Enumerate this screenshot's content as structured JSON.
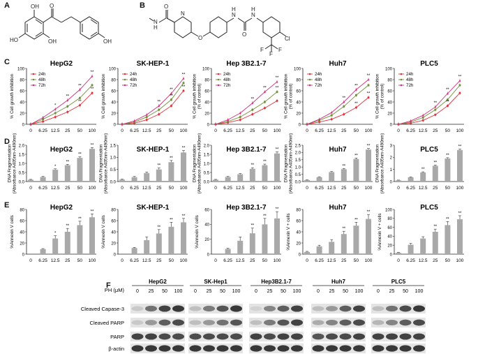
{
  "panels": {
    "A": "A",
    "B": "B",
    "C": "C",
    "D": "D",
    "E": "E",
    "F": "F"
  },
  "chem_atoms": {
    "oh": "OH",
    "ho": "HO",
    "o": "O",
    "h": "H",
    "n": "N",
    "cl": "Cl",
    "f": "F"
  },
  "colors": {
    "h24": "#e0303a",
    "h48": "#6e8f3a",
    "h72": "#d0307a",
    "bar": "#a9a9a9"
  },
  "dose_ticks": [
    "0",
    "6.25",
    "12.5",
    "25",
    "50",
    "100"
  ],
  "chart_data": [
    {
      "row": "C",
      "title": "HepG2",
      "type": "line",
      "ylabel": [
        "% Cell growth inhibition"
      ],
      "ylim": [
        0,
        100
      ],
      "yticks": [
        "0",
        "20",
        "40",
        "60",
        "80",
        "100"
      ],
      "legend": [
        "24h",
        "48h",
        "72h"
      ],
      "series": [
        {
          "name": "24h",
          "values": [
            0,
            5,
            13,
            22,
            34,
            56
          ]
        },
        {
          "name": "48h",
          "values": [
            0,
            9,
            20,
            32,
            47,
            70
          ]
        },
        {
          "name": "72h",
          "values": [
            0,
            12,
            27,
            43,
            62,
            86
          ]
        }
      ],
      "stars": [
        {
          "x": 2,
          "v": 27,
          "t": "*"
        },
        {
          "x": 3,
          "v": 43,
          "t": "**"
        },
        {
          "x": 4,
          "v": 62,
          "t": "**"
        },
        {
          "x": 5,
          "v": 86,
          "t": "**"
        },
        {
          "x": 4,
          "v": 34,
          "t": "**"
        },
        {
          "x": 5,
          "v": 56,
          "t": "**"
        }
      ]
    },
    {
      "row": "C",
      "title": "SK-HEP-1",
      "type": "line",
      "ylabel": [
        "% Cell growth inhibition"
      ],
      "ylim": [
        0,
        100
      ],
      "yticks": [
        "0",
        "20",
        "40",
        "60",
        "80",
        "100"
      ],
      "legend": [
        "24h",
        "48h",
        "72h"
      ],
      "series": [
        {
          "name": "24h",
          "values": [
            0,
            2,
            8,
            18,
            33,
            60
          ]
        },
        {
          "name": "48h",
          "values": [
            0,
            4,
            13,
            26,
            44,
            74
          ]
        },
        {
          "name": "72h",
          "values": [
            0,
            6,
            17,
            33,
            55,
            82
          ]
        }
      ],
      "stars": [
        {
          "x": 3,
          "v": 33,
          "t": "**"
        },
        {
          "x": 4,
          "v": 55,
          "t": "**"
        },
        {
          "x": 5,
          "v": 82,
          "t": "**"
        },
        {
          "x": 4,
          "v": 44,
          "t": "**"
        },
        {
          "x": 5,
          "v": 60,
          "t": "**"
        }
      ]
    },
    {
      "row": "C",
      "title": "Hep 3B2.1-7",
      "type": "line",
      "ylabel": [
        "% Cell growth inhibition",
        "(% of control)"
      ],
      "ylim": [
        0,
        100
      ],
      "yticks": [
        "0",
        "20",
        "40",
        "60",
        "80",
        "100"
      ],
      "legend": [
        "24h",
        "48h",
        "72h"
      ],
      "series": [
        {
          "name": "24h",
          "values": [
            0,
            3,
            8,
            18,
            29,
            42
          ]
        },
        {
          "name": "48h",
          "values": [
            0,
            5,
            13,
            26,
            40,
            58
          ]
        },
        {
          "name": "72h",
          "values": [
            0,
            8,
            20,
            38,
            58,
            76
          ]
        }
      ],
      "stars": [
        {
          "x": 3,
          "v": 38,
          "t": "**"
        },
        {
          "x": 4,
          "v": 58,
          "t": "**"
        },
        {
          "x": 5,
          "v": 76,
          "t": "**"
        },
        {
          "x": 5,
          "v": 58,
          "t": "**"
        }
      ]
    },
    {
      "row": "C",
      "title": "Huh7",
      "type": "line",
      "ylabel": [
        "% Cell growth inhibition",
        "(% of control)"
      ],
      "ylim": [
        0,
        100
      ],
      "yticks": [
        "0",
        "20",
        "40",
        "60",
        "80",
        "100"
      ],
      "legend": [
        "24h",
        "48h",
        "72h"
      ],
      "series": [
        {
          "name": "24h",
          "values": [
            0,
            4,
            9,
            18,
            30,
            48
          ]
        },
        {
          "name": "48h",
          "values": [
            0,
            7,
            16,
            32,
            52,
            70
          ]
        },
        {
          "name": "72h",
          "values": [
            0,
            9,
            21,
            40,
            62,
            80
          ]
        }
      ],
      "stars": [
        {
          "x": 3,
          "v": 40,
          "t": "**"
        },
        {
          "x": 4,
          "v": 62,
          "t": "**"
        },
        {
          "x": 5,
          "v": 80,
          "t": "**"
        },
        {
          "x": 4,
          "v": 30,
          "t": "**"
        },
        {
          "x": 5,
          "v": 48,
          "t": "**"
        }
      ]
    },
    {
      "row": "C",
      "title": "PLC5",
      "type": "line",
      "ylabel": [
        "% Cell growth inhibition",
        "(% of control)"
      ],
      "ylim": [
        0,
        100
      ],
      "yticks": [
        "0",
        "20",
        "40",
        "60",
        "80",
        "100"
      ],
      "legend": [
        "24h",
        "48h",
        "72h"
      ],
      "series": [
        {
          "name": "24h",
          "values": [
            0,
            2,
            7,
            17,
            33,
            56
          ]
        },
        {
          "name": "48h",
          "values": [
            0,
            4,
            12,
            26,
            44,
            70
          ]
        },
        {
          "name": "72h",
          "values": [
            0,
            6,
            16,
            31,
            55,
            78
          ]
        }
      ],
      "stars": [
        {
          "x": 3,
          "v": 31,
          "t": "**"
        },
        {
          "x": 4,
          "v": 55,
          "t": "**"
        },
        {
          "x": 5,
          "v": 78,
          "t": "**"
        },
        {
          "x": 4,
          "v": 33,
          "t": "**"
        }
      ]
    },
    {
      "row": "D",
      "title": "HepG2",
      "type": "bar",
      "ylabel": [
        "DNA Fragmentation",
        "(Absorbance A405nm-A490nm)"
      ],
      "ylim": [
        0,
        2.0
      ],
      "yticks": [
        "0.0",
        "0.5",
        "1.0",
        "1.5",
        "2.0"
      ],
      "values": [
        0.1,
        0.25,
        0.65,
        0.9,
        1.3,
        1.8
      ],
      "errors": [
        0.02,
        0.03,
        0.05,
        0.05,
        0.06,
        0.07
      ],
      "stars": [
        "",
        "",
        "*",
        "**",
        "**",
        "**"
      ]
    },
    {
      "row": "D",
      "title": "SK-HEP-1",
      "type": "bar",
      "ylabel": [
        "DNA Fragmentation",
        "(Absorbance A405nm-A490nm)"
      ],
      "ylim": [
        0,
        1.5
      ],
      "yticks": [
        "0.0",
        "0.5",
        "1.0",
        "1.5"
      ],
      "values": [
        0.08,
        0.18,
        0.35,
        0.5,
        0.8,
        1.2
      ],
      "errors": [
        0.02,
        0.03,
        0.04,
        0.06,
        0.07,
        0.08
      ],
      "stars": [
        "",
        "",
        "",
        "**",
        "**",
        "**"
      ]
    },
    {
      "row": "D",
      "title": "Hep 3B2.1-7",
      "type": "bar",
      "ylabel": [
        "DNA Fragmentation",
        "(Absorbance A405nm-A490nm)"
      ],
      "ylim": [
        0,
        2.0
      ],
      "yticks": [
        "0.0",
        "0.5",
        "1.0",
        "1.5",
        "2.0"
      ],
      "values": [
        0.1,
        0.25,
        0.4,
        0.7,
        0.9,
        1.55
      ],
      "errors": [
        0.02,
        0.03,
        0.04,
        0.06,
        0.06,
        0.08
      ],
      "stars": [
        "",
        "",
        "",
        "**",
        "**",
        "**"
      ]
    },
    {
      "row": "D",
      "title": "Huh7",
      "type": "bar",
      "ylabel": [
        "DNA Fragmentation",
        "(Absorbance A405nm-A490nm)"
      ],
      "ylim": [
        0,
        2.5
      ],
      "yticks": [
        "0.0",
        "0.5",
        "1.0",
        "1.5",
        "2.0",
        "2.5"
      ],
      "values": [
        0.1,
        0.3,
        0.65,
        0.85,
        1.55,
        2.2
      ],
      "errors": [
        0.02,
        0.03,
        0.04,
        0.05,
        0.07,
        0.08
      ],
      "stars": [
        "",
        "",
        "",
        "**",
        "**",
        "**"
      ]
    },
    {
      "row": "D",
      "title": "PLC5",
      "type": "bar",
      "ylabel": [
        "DNA Fragmentation",
        "(Absorbance A405nm-A490nm)"
      ],
      "ylim": [
        0,
        3.0
      ],
      "yticks": [
        "0",
        "1",
        "2",
        "3"
      ],
      "values": [
        0.1,
        0.35,
        0.75,
        1.3,
        1.9,
        2.6
      ],
      "errors": [
        0.02,
        0.03,
        0.05,
        0.06,
        0.07,
        0.08
      ],
      "stars": [
        "",
        "",
        "**",
        "**",
        "**",
        "**"
      ]
    },
    {
      "row": "E",
      "title": "HepG2",
      "type": "bar",
      "ylabel": [
        "%Annexin V cells"
      ],
      "ylim": [
        0,
        80
      ],
      "yticks": [
        "0",
        "20",
        "40",
        "60",
        "80"
      ],
      "values": [
        0,
        9,
        28,
        40,
        52,
        66
      ],
      "errors": [
        0,
        1,
        5,
        6,
        7,
        6
      ],
      "stars": [
        "",
        "",
        "*",
        "**",
        "**",
        "**"
      ]
    },
    {
      "row": "E",
      "title": "SK-HEP-1",
      "type": "bar",
      "ylabel": [
        "%Annexin V cells"
      ],
      "ylim": [
        0,
        80
      ],
      "yticks": [
        "0",
        "20",
        "40",
        "60",
        "80"
      ],
      "values": [
        0,
        11,
        25,
        37,
        49,
        57
      ],
      "errors": [
        0,
        1,
        6,
        7,
        8,
        7
      ],
      "stars": [
        "",
        "",
        "",
        "**",
        "**",
        "**"
      ]
    },
    {
      "row": "E",
      "title": "Hep 3B2.1-7",
      "type": "bar",
      "ylabel": [
        "%Annexin V cells"
      ],
      "ylim": [
        0,
        60
      ],
      "yticks": [
        "0",
        "20",
        "40",
        "60"
      ],
      "values": [
        0,
        7,
        18,
        28,
        40,
        48
      ],
      "errors": [
        0,
        1,
        5,
        7,
        8,
        9
      ],
      "stars": [
        "",
        "",
        "",
        "**",
        "**",
        "**"
      ]
    },
    {
      "row": "E",
      "title": "Huh7",
      "type": "bar",
      "ylabel": [
        "%Annexin V + cells"
      ],
      "ylim": [
        0,
        80
      ],
      "yticks": [
        "0",
        "20",
        "40",
        "60",
        "80"
      ],
      "values": [
        4,
        14,
        22,
        36,
        51,
        63
      ],
      "errors": [
        1,
        2,
        4,
        5,
        6,
        8
      ],
      "stars": [
        "",
        "",
        "",
        "**",
        "**",
        "**"
      ]
    },
    {
      "row": "E",
      "title": "PLC5",
      "type": "bar",
      "ylabel": [
        "%Annexin V + cells"
      ],
      "ylim": [
        0,
        100
      ],
      "yticks": [
        "0",
        "20",
        "40",
        "60",
        "80",
        "100"
      ],
      "values": [
        3,
        21,
        35,
        50,
        65,
        78
      ],
      "errors": [
        1,
        3,
        4,
        6,
        8,
        8
      ],
      "stars": [
        "",
        "",
        "",
        "**",
        "**",
        "**"
      ]
    }
  ],
  "western": {
    "dose_label": "PH (μM)",
    "lanes": [
      "0",
      "25",
      "50",
      "100"
    ],
    "cell_lines": [
      "HepG2",
      "SK-Hep1",
      "Hep3B2.1-7",
      "Huh7",
      "PLC5"
    ],
    "rows": [
      "Cleaved Capase-3",
      "Cleaved PARP",
      "PARP",
      "β-actin"
    ],
    "intensity": [
      [
        [
          0.15,
          0.6,
          0.85,
          0.9
        ],
        [
          0.2,
          0.55,
          0.75,
          0.9
        ],
        [
          0.1,
          0.5,
          0.7,
          0.85
        ],
        [
          0.2,
          0.4,
          0.7,
          0.85
        ],
        [
          0.2,
          0.6,
          0.8,
          0.9
        ]
      ],
      [
        [
          0.15,
          0.4,
          0.7,
          0.8
        ],
        [
          0.2,
          0.4,
          0.6,
          0.75
        ],
        [
          0.2,
          0.55,
          0.75,
          0.85
        ],
        [
          0.3,
          0.5,
          0.7,
          0.8
        ],
        [
          0.25,
          0.5,
          0.7,
          0.8
        ]
      ],
      [
        [
          0.85,
          0.85,
          0.8,
          0.8
        ],
        [
          0.8,
          0.8,
          0.8,
          0.8
        ],
        [
          0.85,
          0.8,
          0.85,
          0.85
        ],
        [
          0.75,
          0.8,
          0.8,
          0.85
        ],
        [
          0.85,
          0.85,
          0.85,
          0.85
        ]
      ],
      [
        [
          0.9,
          0.9,
          0.9,
          0.9
        ],
        [
          0.9,
          0.9,
          0.9,
          0.9
        ],
        [
          0.9,
          0.9,
          0.9,
          0.9
        ],
        [
          0.9,
          0.9,
          0.9,
          0.9
        ],
        [
          0.9,
          0.9,
          0.9,
          0.9
        ]
      ]
    ]
  }
}
